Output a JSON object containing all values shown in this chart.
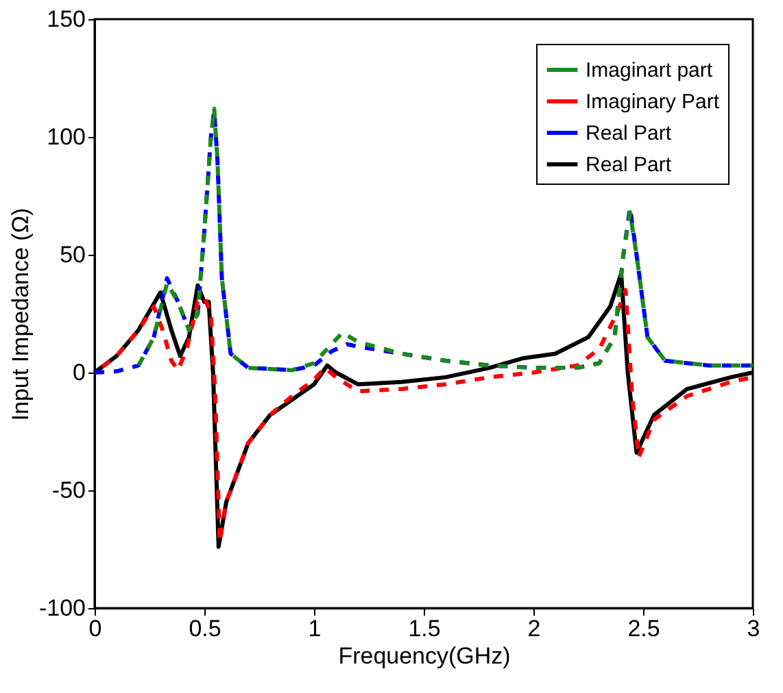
{
  "chart_data": {
    "type": "line",
    "xlabel": "Frequency(GHz)",
    "ylabel": "Input Impedance (Ω)",
    "xlim": [
      0,
      3
    ],
    "ylim": [
      -100,
      150
    ],
    "xticks": [
      {
        "value": 0,
        "label": "0"
      },
      0.5,
      {
        "value": 1,
        "label": "1"
      },
      1.5,
      {
        "value": 2,
        "label": "2"
      },
      2.5,
      {
        "value": 3,
        "label": "3"
      }
    ],
    "yticks": [
      -100,
      -50,
      0,
      50,
      100,
      150
    ],
    "grid": false,
    "legend": "top right",
    "series": [
      {
        "name": "Imaginart part",
        "color": "#1a8a1a",
        "line_style": "dashed",
        "x": [
          0.2,
          0.27,
          0.33,
          0.38,
          0.43,
          0.47,
          0.5,
          0.53,
          0.545,
          0.56,
          0.58,
          0.62,
          0.7,
          0.9,
          1.0,
          1.08,
          1.13,
          1.2,
          1.4,
          1.6,
          1.8,
          2.0,
          2.2,
          2.3,
          2.37,
          2.41,
          2.44,
          2.47,
          2.52,
          2.6,
          2.8,
          3.0
        ],
        "values": [
          3,
          15,
          38,
          30,
          18,
          25,
          60,
          100,
          112,
          90,
          40,
          8,
          2,
          1,
          4,
          12,
          17,
          13,
          8,
          5,
          3,
          2,
          2,
          4,
          15,
          50,
          68,
          50,
          15,
          5,
          3,
          3
        ]
      },
      {
        "name": "Imaginary Part",
        "color": "#ff0000",
        "line_style": "dashed",
        "x": [
          0,
          0.1,
          0.2,
          0.27,
          0.31,
          0.35,
          0.38,
          0.42,
          0.47,
          0.5,
          0.53,
          0.55,
          0.57,
          0.6,
          0.7,
          0.8,
          0.9,
          1.0,
          1.05,
          1.1,
          1.2,
          1.4,
          1.6,
          1.8,
          2.0,
          2.2,
          2.3,
          2.38,
          2.42,
          2.45,
          2.48,
          2.55,
          2.7,
          2.9,
          3.0
        ],
        "values": [
          0,
          7,
          18,
          28,
          18,
          5,
          1,
          10,
          30,
          32,
          25,
          -10,
          -72,
          -55,
          -30,
          -18,
          -10,
          -3,
          2,
          -2,
          -8,
          -7,
          -5,
          -2,
          0,
          3,
          10,
          25,
          35,
          -10,
          -36,
          -20,
          -10,
          -4,
          -2
        ]
      },
      {
        "name": "Real Part",
        "color": "#0000ff",
        "line_style": "dashed",
        "x": [
          0,
          0.1,
          0.2,
          0.27,
          0.33,
          0.38,
          0.43,
          0.47,
          0.5,
          0.53,
          0.545,
          0.56,
          0.58,
          0.62,
          0.7,
          0.9,
          1.0,
          1.08,
          1.15,
          1.2,
          1.4,
          1.6,
          1.8,
          2.0,
          2.2,
          2.3,
          2.37,
          2.41,
          2.44,
          2.47,
          2.52,
          2.6,
          2.8,
          3.0
        ],
        "values": [
          0,
          0.5,
          3,
          15,
          40,
          30,
          18,
          25,
          60,
          100,
          111,
          90,
          40,
          8,
          2,
          1,
          3,
          9,
          12,
          11,
          8,
          5,
          3,
          2,
          2,
          4,
          15,
          50,
          70,
          50,
          15,
          5,
          3,
          3
        ]
      },
      {
        "name": "Real Part",
        "color": "#000000",
        "line_style": "solid",
        "x": [
          0,
          0.1,
          0.2,
          0.3,
          0.35,
          0.39,
          0.43,
          0.47,
          0.5,
          0.52,
          0.54,
          0.565,
          0.6,
          0.7,
          0.8,
          1.0,
          1.06,
          1.1,
          1.2,
          1.4,
          1.6,
          1.8,
          1.95,
          2.1,
          2.25,
          2.35,
          2.4,
          2.43,
          2.47,
          2.55,
          2.7,
          2.9,
          3.0
        ],
        "values": [
          0,
          7,
          18,
          34,
          18,
          7,
          15,
          37,
          30,
          30,
          0,
          -74,
          -55,
          -30,
          -18,
          -5,
          3,
          0,
          -5,
          -4,
          -2,
          2,
          6,
          8,
          15,
          28,
          42,
          0,
          -34,
          -18,
          -7,
          -2,
          0
        ]
      }
    ]
  }
}
